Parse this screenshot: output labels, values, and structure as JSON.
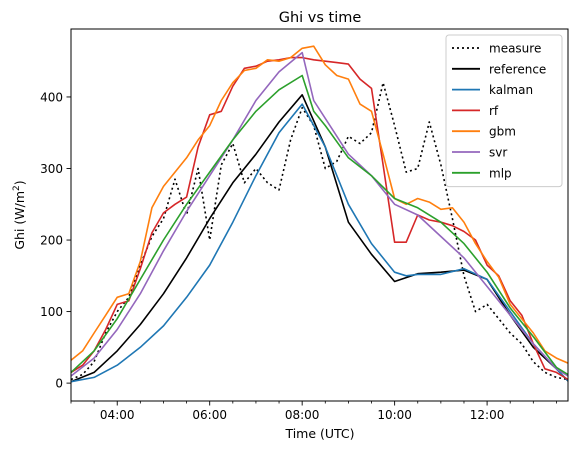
{
  "chart_data": {
    "type": "line",
    "title": "Ghi vs time",
    "xlabel": "Time (UTC)",
    "ylabel_main": "Ghi (W/m",
    "ylabel_sup": "2",
    "ylabel_close": ")",
    "xlim": [
      3.0,
      13.75
    ],
    "ylim": [
      -25,
      495
    ],
    "x_ticks": [
      {
        "v": 4.0,
        "label": "04:00"
      },
      {
        "v": 6.0,
        "label": "06:00"
      },
      {
        "v": 8.0,
        "label": "08:00"
      },
      {
        "v": 10.0,
        "label": "10:00"
      },
      {
        "v": 12.0,
        "label": "12:00"
      }
    ],
    "x_minor_ticks": [
      3.0,
      3.5,
      4.5,
      5.0,
      5.5,
      6.5,
      7.0,
      7.5,
      8.5,
      9.0,
      9.5,
      10.5,
      11.0,
      11.5,
      12.5,
      13.0,
      13.5
    ],
    "y_ticks": [
      {
        "v": 0,
        "label": "0"
      },
      {
        "v": 100,
        "label": "100"
      },
      {
        "v": 200,
        "label": "200"
      },
      {
        "v": 300,
        "label": "300"
      },
      {
        "v": 400,
        "label": "400"
      }
    ],
    "legend_position": "top-right",
    "series": [
      {
        "name": "measure",
        "color": "#000000",
        "dash": "2,3",
        "x": [
          3.0,
          3.25,
          3.5,
          3.75,
          4.0,
          4.25,
          4.5,
          4.75,
          5.0,
          5.25,
          5.5,
          5.75,
          6.0,
          6.25,
          6.5,
          6.75,
          7.0,
          7.25,
          7.5,
          7.75,
          8.0,
          8.25,
          8.5,
          8.75,
          9.0,
          9.25,
          9.5,
          9.75,
          10.0,
          10.25,
          10.5,
          10.75,
          11.0,
          11.25,
          11.5,
          11.75,
          12.0,
          12.25,
          12.5,
          12.75,
          13.0,
          13.25,
          13.5,
          13.75
        ],
        "y": [
          5,
          12,
          30,
          70,
          100,
          120,
          165,
          205,
          230,
          285,
          235,
          300,
          200,
          305,
          335,
          280,
          300,
          280,
          270,
          340,
          385,
          360,
          300,
          310,
          345,
          335,
          350,
          420,
          360,
          295,
          300,
          365,
          305,
          230,
          150,
          100,
          110,
          90,
          70,
          55,
          30,
          15,
          8,
          5
        ]
      },
      {
        "name": "reference",
        "color": "#000000",
        "dash": "",
        "x": [
          3.0,
          3.5,
          4.0,
          4.5,
          5.0,
          5.5,
          6.0,
          6.5,
          7.0,
          7.5,
          8.0,
          8.5,
          9.0,
          9.5,
          10.0,
          10.5,
          11.0,
          11.5,
          12.0,
          12.5,
          13.0,
          13.5,
          13.75
        ],
        "y": [
          2,
          15,
          45,
          82,
          125,
          175,
          230,
          280,
          320,
          365,
          403,
          330,
          225,
          180,
          142,
          153,
          155,
          158,
          145,
          95,
          50,
          20,
          3
        ]
      },
      {
        "name": "kalman",
        "color": "#1f77b4",
        "dash": "",
        "x": [
          3.0,
          3.5,
          4.0,
          4.5,
          5.0,
          5.5,
          6.0,
          6.5,
          7.0,
          7.5,
          8.0,
          8.5,
          9.0,
          9.5,
          10.0,
          10.25,
          10.5,
          11.0,
          11.5,
          12.0,
          12.5,
          13.0,
          13.5,
          13.75
        ],
        "y": [
          2,
          8,
          25,
          50,
          80,
          120,
          165,
          225,
          290,
          350,
          390,
          330,
          250,
          195,
          155,
          150,
          152,
          152,
          160,
          145,
          100,
          55,
          20,
          3
        ]
      },
      {
        "name": "rf",
        "color": "#d62728",
        "dash": "",
        "x": [
          3.0,
          3.25,
          3.5,
          3.75,
          4.0,
          4.25,
          4.5,
          4.75,
          5.0,
          5.25,
          5.5,
          5.75,
          6.0,
          6.25,
          6.5,
          6.75,
          7.0,
          7.25,
          7.5,
          7.75,
          8.0,
          8.25,
          8.5,
          8.75,
          9.0,
          9.25,
          9.5,
          9.75,
          10.0,
          10.25,
          10.5,
          10.75,
          11.0,
          11.25,
          11.5,
          11.75,
          12.0,
          12.25,
          12.5,
          12.75,
          13.0,
          13.25,
          13.5,
          13.75
        ],
        "y": [
          15,
          25,
          45,
          75,
          110,
          115,
          160,
          210,
          238,
          250,
          260,
          330,
          375,
          380,
          415,
          440,
          443,
          450,
          452,
          455,
          455,
          452,
          450,
          448,
          446,
          425,
          412,
          305,
          197,
          197,
          235,
          228,
          225,
          220,
          212,
          200,
          165,
          150,
          115,
          95,
          55,
          20,
          15,
          5
        ]
      },
      {
        "name": "gbm",
        "color": "#ff7f0e",
        "dash": "",
        "x": [
          3.0,
          3.25,
          3.5,
          3.75,
          4.0,
          4.25,
          4.5,
          4.75,
          5.0,
          5.25,
          5.5,
          5.75,
          6.0,
          6.25,
          6.5,
          6.75,
          7.0,
          7.25,
          7.5,
          7.75,
          8.0,
          8.25,
          8.5,
          8.75,
          9.0,
          9.25,
          9.5,
          9.75,
          10.0,
          10.25,
          10.5,
          10.75,
          11.0,
          11.25,
          11.5,
          11.75,
          12.0,
          12.25,
          12.5,
          12.75,
          13.0,
          13.25,
          13.5,
          13.75
        ],
        "y": [
          32,
          45,
          70,
          95,
          120,
          125,
          170,
          245,
          275,
          295,
          315,
          340,
          360,
          395,
          420,
          437,
          440,
          452,
          450,
          455,
          468,
          471,
          445,
          430,
          425,
          390,
          380,
          320,
          258,
          250,
          258,
          253,
          243,
          245,
          225,
          195,
          170,
          148,
          110,
          90,
          70,
          45,
          35,
          28
        ]
      },
      {
        "name": "svr",
        "color": "#9467bd",
        "dash": "",
        "x": [
          3.0,
          3.5,
          4.0,
          4.5,
          5.0,
          5.5,
          6.0,
          6.5,
          7.0,
          7.5,
          8.0,
          8.25,
          8.5,
          9.0,
          9.5,
          10.0,
          10.5,
          11.0,
          11.5,
          12.0,
          12.5,
          13.0,
          13.5,
          13.75
        ],
        "y": [
          10,
          35,
          75,
          125,
          185,
          240,
          290,
          340,
          395,
          435,
          462,
          395,
          370,
          320,
          290,
          250,
          235,
          205,
          175,
          135,
          95,
          55,
          20,
          10
        ]
      },
      {
        "name": "mlp",
        "color": "#2ca02c",
        "dash": "",
        "x": [
          3.0,
          3.5,
          4.0,
          4.5,
          5.0,
          5.5,
          6.0,
          6.5,
          7.0,
          7.5,
          8.0,
          8.25,
          8.5,
          9.0,
          9.5,
          10.0,
          10.5,
          11.0,
          11.5,
          12.0,
          12.5,
          13.0,
          13.5,
          13.75
        ],
        "y": [
          15,
          45,
          90,
          145,
          200,
          250,
          295,
          340,
          380,
          410,
          430,
          380,
          360,
          315,
          290,
          258,
          245,
          225,
          195,
          155,
          105,
          65,
          22,
          12
        ]
      }
    ]
  }
}
